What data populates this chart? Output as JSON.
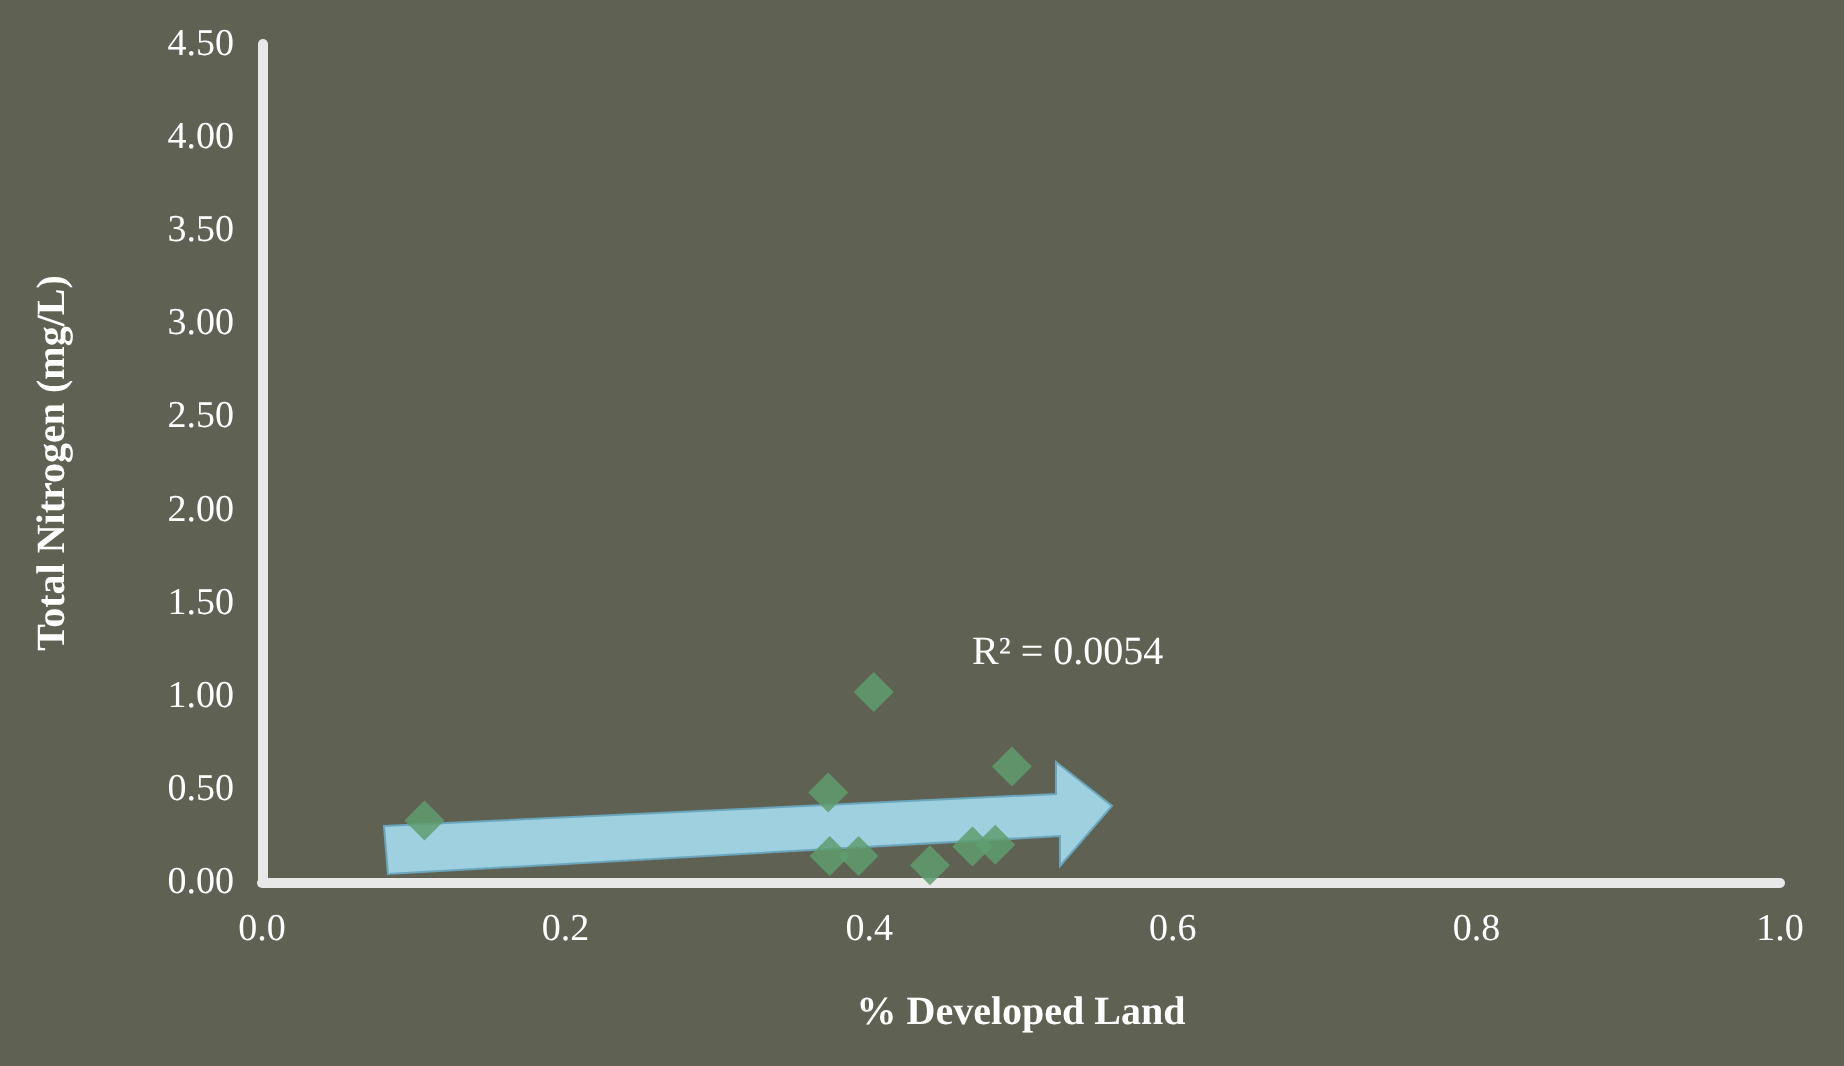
{
  "chart_data": {
    "type": "scatter",
    "xlabel": "% Developed Land",
    "ylabel": "Total Nitrogen (mg/L)",
    "annotations": [
      "R² = 0.0054"
    ],
    "x": [
      0.107,
      0.373,
      0.403,
      0.494,
      0.44,
      0.374,
      0.393,
      0.468,
      0.483
    ],
    "values": [
      0.33,
      0.48,
      1.02,
      0.62,
      0.09,
      0.14,
      0.14,
      0.19,
      0.2
    ],
    "color": "#5f9e6e",
    "marker": "diamond",
    "grid": false,
    "xlim": [
      0,
      1
    ],
    "xticks": [
      {
        "value": 0,
        "label": "0.0"
      },
      {
        "value": 0.2,
        "label": "0.2"
      },
      {
        "value": 0.4,
        "label": "0.4"
      },
      {
        "value": 0.6,
        "label": "0.6"
      },
      {
        "value": 0.8,
        "label": "0.8"
      },
      {
        "value": 1,
        "label": "1.0"
      }
    ],
    "ylim": [
      0,
      4.5
    ],
    "yticks": [
      {
        "value": 0,
        "label": "0.00"
      },
      {
        "value": 0.5,
        "label": "0.50"
      },
      {
        "value": 1,
        "label": "1.00"
      },
      {
        "value": 1.5,
        "label": "1.50"
      },
      {
        "value": 2,
        "label": "2.00"
      },
      {
        "value": 2.5,
        "label": "2.50"
      },
      {
        "value": 3,
        "label": "3.00"
      },
      {
        "value": 3.5,
        "label": "3.50"
      },
      {
        "value": 4,
        "label": "4.00"
      },
      {
        "value": 4.5,
        "label": "4.50"
      }
    ]
  }
}
